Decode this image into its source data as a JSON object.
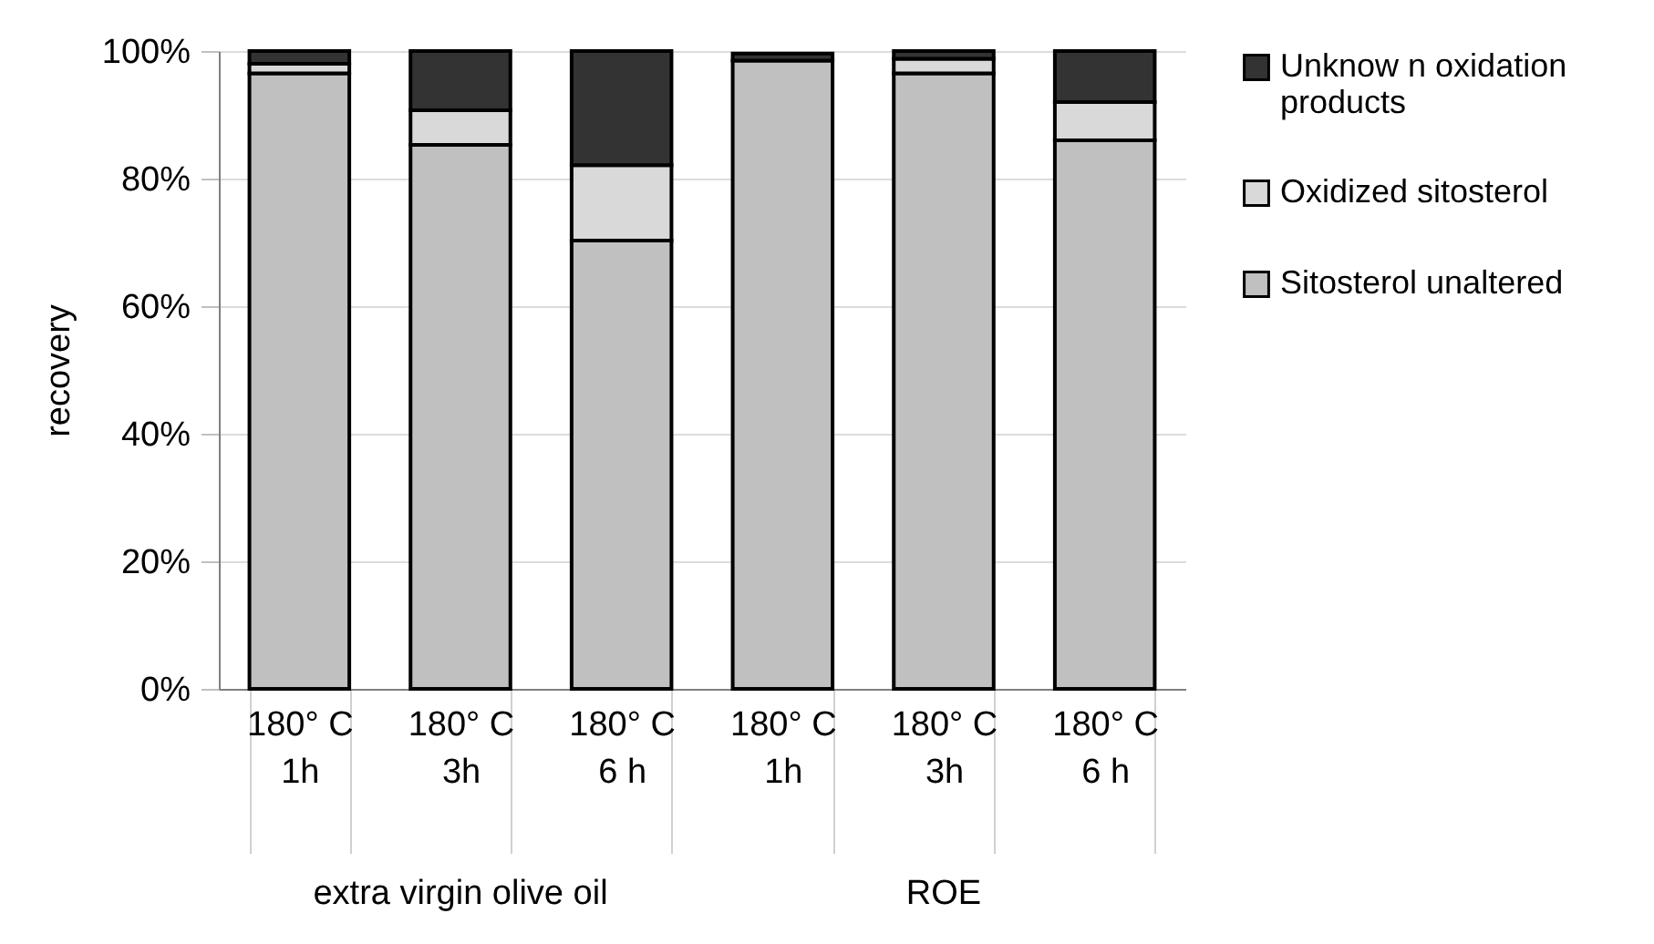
{
  "chart_data": {
    "type": "bar",
    "stacked": true,
    "ylabel": "recovery",
    "categories": [
      "180° C\n1h",
      "180° C\n3h",
      "180° C\n6 h",
      "180° C\n1h",
      "180° C\n3h",
      "180° C\n6 h"
    ],
    "series": [
      {
        "name": "Sitosterol unaltered",
        "color": "#c0c0c0",
        "values": [
          96.5,
          85.3,
          70.3,
          98.5,
          96.5,
          86
        ]
      },
      {
        "name": "Oxidized sitosterol",
        "color": "#d9d9d9",
        "values": [
          1.5,
          5.4,
          11.8,
          null,
          2.3,
          6
        ]
      },
      {
        "name": "Unknow n oxidation products",
        "color": "#333333",
        "values": [
          2,
          9.3,
          17.9,
          1.1,
          1.2,
          8
        ]
      }
    ],
    "ylim": [
      0,
      100
    ],
    "yticks": [
      {
        "value": 0,
        "label": "0%"
      },
      {
        "value": 20,
        "label": "20%"
      },
      {
        "value": 40,
        "label": "40%"
      },
      {
        "value": 60,
        "label": "60%"
      },
      {
        "value": 80,
        "label": "80%"
      },
      {
        "value": 100,
        "label": "100%"
      }
    ],
    "grid": "y",
    "legend": "right",
    "annotations": [
      "extra virgin olive oil",
      "ROE"
    ]
  }
}
